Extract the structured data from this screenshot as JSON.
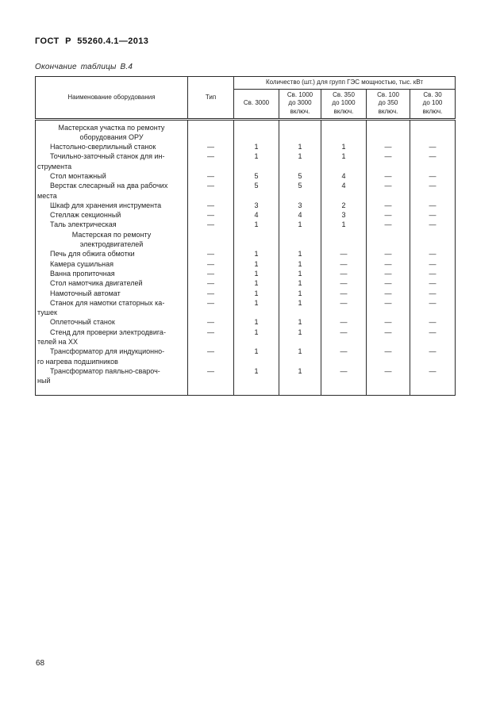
{
  "page": {
    "doc_title": "ГОСТ Р 55260.4.1—2013",
    "table_caption": "Окончание таблицы В.4",
    "page_number": "68"
  },
  "table": {
    "name_header": "Наименование оборудования",
    "type_header": "Тип",
    "group_header": "Количество (шт.) для групп ГЭС мощностью, тыс. кВт",
    "quantity_headers": [
      "Св. 3000",
      "Св. 1000\nдо 3000\nвключ.",
      "Св. 350\nдо 1000\nвключ.",
      "Св. 100\nдо 350\nвключ.",
      "Св. 30\nдо 100\nвключ."
    ],
    "rows": [
      {
        "kind": "section",
        "lines": [
          "Мастерская участка по ремонту",
          "оборудования ОРУ"
        ]
      },
      {
        "kind": "item",
        "lines": [
          "Настольно-сверлильный станок"
        ],
        "values": [
          "—",
          "1",
          "1",
          "1",
          "—",
          "—"
        ]
      },
      {
        "kind": "item",
        "lines": [
          "Точильно-заточный станок для ин-",
          "струмента"
        ],
        "values": [
          "—",
          "1",
          "1",
          "1",
          "—",
          "—"
        ]
      },
      {
        "kind": "item",
        "lines": [
          "Стол монтажный"
        ],
        "values": [
          "—",
          "5",
          "5",
          "4",
          "—",
          "—"
        ]
      },
      {
        "kind": "item",
        "lines": [
          "Верстак слесарный на два рабочих",
          "места"
        ],
        "values": [
          "—",
          "5",
          "5",
          "4",
          "—",
          "—"
        ]
      },
      {
        "kind": "item",
        "lines": [
          "Шкаф для хранения инструмента"
        ],
        "values": [
          "—",
          "3",
          "3",
          "2",
          "—",
          "—"
        ]
      },
      {
        "kind": "item",
        "lines": [
          "Стеллаж секционный"
        ],
        "values": [
          "—",
          "4",
          "4",
          "3",
          "—",
          "—"
        ]
      },
      {
        "kind": "item",
        "lines": [
          "Таль электрическая"
        ],
        "values": [
          "—",
          "1",
          "1",
          "1",
          "—",
          "—"
        ]
      },
      {
        "kind": "section",
        "lines": [
          "Мастерская по ремонту",
          "электродвигателей"
        ]
      },
      {
        "kind": "item",
        "lines": [
          "Печь для обжига обмотки"
        ],
        "values": [
          "—",
          "1",
          "1",
          "—",
          "—",
          "—"
        ]
      },
      {
        "kind": "item",
        "lines": [
          "Камера сушильная"
        ],
        "values": [
          "—",
          "1",
          "1",
          "—",
          "—",
          "—"
        ]
      },
      {
        "kind": "item",
        "lines": [
          "Ванна пропиточная"
        ],
        "values": [
          "—",
          "1",
          "1",
          "—",
          "—",
          "—"
        ]
      },
      {
        "kind": "item",
        "lines": [
          "Стол намотчика двигателей"
        ],
        "values": [
          "—",
          "1",
          "1",
          "—",
          "—",
          "—"
        ]
      },
      {
        "kind": "item",
        "lines": [
          "Намоточный автомат"
        ],
        "values": [
          "—",
          "1",
          "1",
          "—",
          "—",
          "—"
        ]
      },
      {
        "kind": "item",
        "lines": [
          "Станок для намотки статорных ка-",
          "тушек"
        ],
        "values": [
          "—",
          "1",
          "1",
          "—",
          "—",
          "—"
        ]
      },
      {
        "kind": "item",
        "lines": [
          "Оплеточный станок"
        ],
        "values": [
          "—",
          "1",
          "1",
          "—",
          "—",
          "—"
        ]
      },
      {
        "kind": "item",
        "lines": [
          "Стенд для проверки электродвига-",
          "телей на ХХ"
        ],
        "values": [
          "—",
          "1",
          "1",
          "—",
          "—",
          "—"
        ]
      },
      {
        "kind": "item",
        "lines": [
          "Трансформатор для индукционно-",
          "го нагрева подшипников"
        ],
        "values": [
          "—",
          "1",
          "1",
          "—",
          "—",
          "—"
        ]
      },
      {
        "kind": "item",
        "lines": [
          "Трансформатор паяльно-свароч-",
          "ный"
        ],
        "values": [
          "—",
          "1",
          "1",
          "—",
          "—",
          "—"
        ]
      }
    ]
  }
}
